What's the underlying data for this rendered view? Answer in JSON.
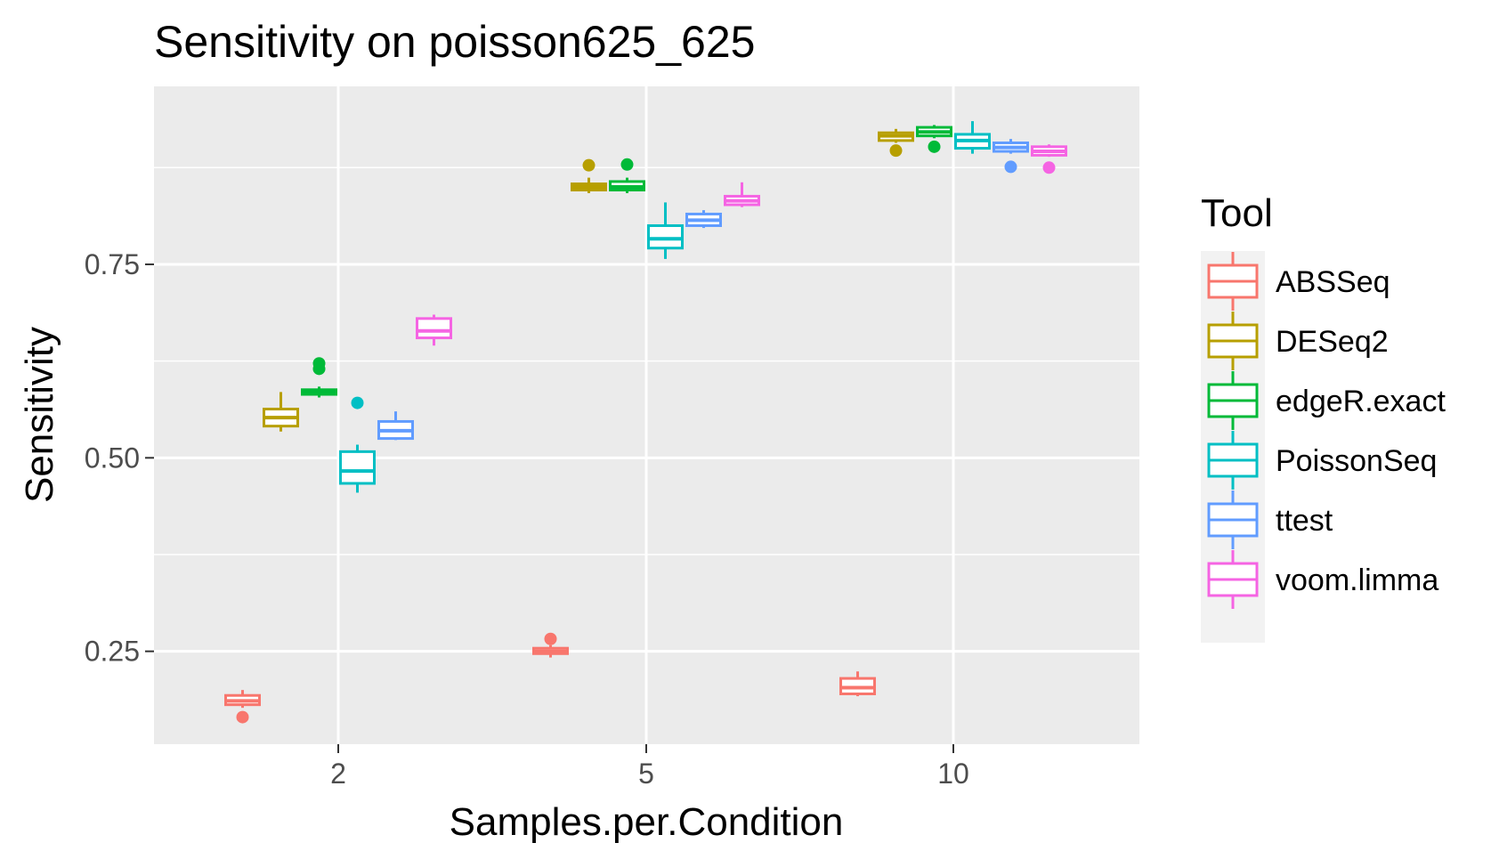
{
  "chart_data": {
    "type": "boxplot",
    "title": "Sensitivity on poisson625_625",
    "xlabel": "Samples.per.Condition",
    "ylabel": "Sensitivity",
    "categories": [
      "2",
      "5",
      "10"
    ],
    "ylim": [
      0.13,
      0.98
    ],
    "yticks": [
      0.25,
      0.5,
      0.75
    ],
    "ytick_labels": [
      "0.25",
      "0.50",
      "0.75"
    ],
    "grid": true,
    "background": "#ebebeb",
    "legend": {
      "title": "Tool",
      "position": "right"
    },
    "series": [
      {
        "name": "ABSSeq",
        "color": "#F8766D",
        "boxes": [
          {
            "category": "2",
            "min": 0.177,
            "q1": 0.181,
            "median": 0.186,
            "q3": 0.193,
            "max": 0.2,
            "outliers": [
              0.165
            ]
          },
          {
            "category": "5",
            "min": 0.242,
            "q1": 0.247,
            "median": 0.25,
            "q3": 0.254,
            "max": 0.258,
            "outliers": [
              0.266
            ]
          },
          {
            "category": "10",
            "min": 0.192,
            "q1": 0.195,
            "median": 0.203,
            "q3": 0.215,
            "max": 0.224,
            "outliers": []
          }
        ]
      },
      {
        "name": "DESeq2",
        "color": "#B79F00",
        "boxes": [
          {
            "category": "2",
            "min": 0.534,
            "q1": 0.541,
            "median": 0.552,
            "q3": 0.563,
            "max": 0.585,
            "outliers": []
          },
          {
            "category": "5",
            "min": 0.842,
            "q1": 0.846,
            "median": 0.85,
            "q3": 0.854,
            "max": 0.862,
            "outliers": [
              0.878
            ]
          },
          {
            "category": "10",
            "min": 0.907,
            "q1": 0.91,
            "median": 0.916,
            "q3": 0.92,
            "max": 0.925,
            "outliers": [
              0.897
            ]
          }
        ]
      },
      {
        "name": "edgeR.exact",
        "color": "#00BA38",
        "boxes": [
          {
            "category": "2",
            "min": 0.578,
            "q1": 0.582,
            "median": 0.585,
            "q3": 0.588,
            "max": 0.592,
            "outliers": [
              0.615,
              0.622
            ]
          },
          {
            "category": "5",
            "min": 0.842,
            "q1": 0.846,
            "median": 0.85,
            "q3": 0.857,
            "max": 0.862,
            "outliers": [
              0.879
            ]
          },
          {
            "category": "10",
            "min": 0.913,
            "q1": 0.916,
            "median": 0.921,
            "q3": 0.927,
            "max": 0.93,
            "outliers": [
              0.902
            ]
          }
        ]
      },
      {
        "name": "PoissonSeq",
        "color": "#00BFC4",
        "boxes": [
          {
            "category": "2",
            "min": 0.455,
            "q1": 0.467,
            "median": 0.483,
            "q3": 0.508,
            "max": 0.517,
            "outliers": [
              0.571
            ]
          },
          {
            "category": "5",
            "min": 0.757,
            "q1": 0.771,
            "median": 0.783,
            "q3": 0.8,
            "max": 0.83,
            "outliers": []
          },
          {
            "category": "10",
            "min": 0.893,
            "q1": 0.9,
            "median": 0.91,
            "q3": 0.918,
            "max": 0.935,
            "outliers": []
          }
        ]
      },
      {
        "name": "ttest",
        "color": "#619CFF",
        "boxes": [
          {
            "category": "2",
            "min": 0.523,
            "q1": 0.525,
            "median": 0.535,
            "q3": 0.547,
            "max": 0.56,
            "outliers": []
          },
          {
            "category": "5",
            "min": 0.797,
            "q1": 0.8,
            "median": 0.807,
            "q3": 0.815,
            "max": 0.82,
            "outliers": []
          },
          {
            "category": "10",
            "min": 0.893,
            "q1": 0.896,
            "median": 0.901,
            "q3": 0.907,
            "max": 0.912,
            "outliers": [
              0.876
            ]
          }
        ]
      },
      {
        "name": "voom.limma",
        "color": "#F564E3",
        "boxes": [
          {
            "category": "2",
            "min": 0.645,
            "q1": 0.655,
            "median": 0.664,
            "q3": 0.68,
            "max": 0.685,
            "outliers": []
          },
          {
            "category": "5",
            "min": 0.824,
            "q1": 0.827,
            "median": 0.832,
            "q3": 0.838,
            "max": 0.856,
            "outliers": []
          },
          {
            "category": "10",
            "min": 0.889,
            "q1": 0.891,
            "median": 0.896,
            "q3": 0.902,
            "max": 0.905,
            "outliers": [
              0.875
            ]
          }
        ]
      }
    ]
  }
}
